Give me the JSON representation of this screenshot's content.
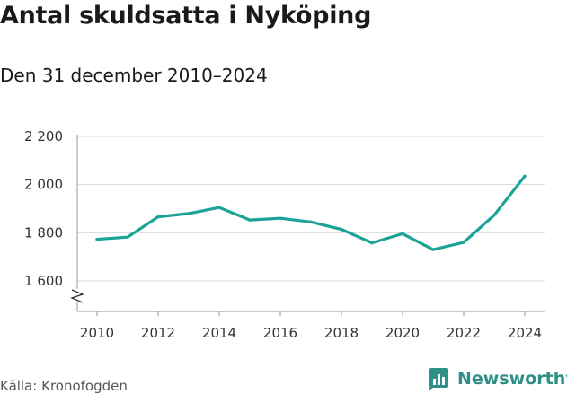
{
  "header": {
    "title": "Antal skuldsatta i Nyköping",
    "subtitle": "Den 31 december 2010–2024"
  },
  "footer": {
    "source": "Källa: Kronofogden",
    "brand": "Newsworthy",
    "brand_icon": "bar-chart-logo-icon"
  },
  "colors": {
    "line": "#1aa396",
    "grid": "#d9d9d9",
    "brand": "#2d8f85"
  },
  "chart_data": {
    "type": "line",
    "title": "Antal skuldsatta i Nyköping",
    "subtitle": "Den 31 december 2010–2024",
    "x": [
      2010,
      2011,
      2012,
      2013,
      2014,
      2015,
      2016,
      2017,
      2018,
      2019,
      2020,
      2021,
      2022,
      2023,
      2024
    ],
    "series": [
      {
        "values": [
          1773,
          1782,
          1866,
          1880,
          1905,
          1853,
          1860,
          1845,
          1814,
          1758,
          1796,
          1730,
          1760,
          1873,
          2035
        ]
      }
    ],
    "x_ticks": [
      2010,
      2012,
      2014,
      2016,
      2018,
      2020,
      2022,
      2024
    ],
    "x_tick_labels": [
      "2010",
      "2012",
      "2014",
      "2016",
      "2018",
      "2020",
      "2022",
      "2024"
    ],
    "y_ticks": [
      1600,
      1800,
      2000,
      2200
    ],
    "y_tick_labels": [
      "1 600",
      "1 800",
      "2 000",
      "2 200"
    ],
    "ylim": [
      1500,
      2200
    ],
    "xlim": [
      2010,
      2024
    ],
    "y_axis_break": true,
    "grid": true,
    "legend": "none"
  }
}
